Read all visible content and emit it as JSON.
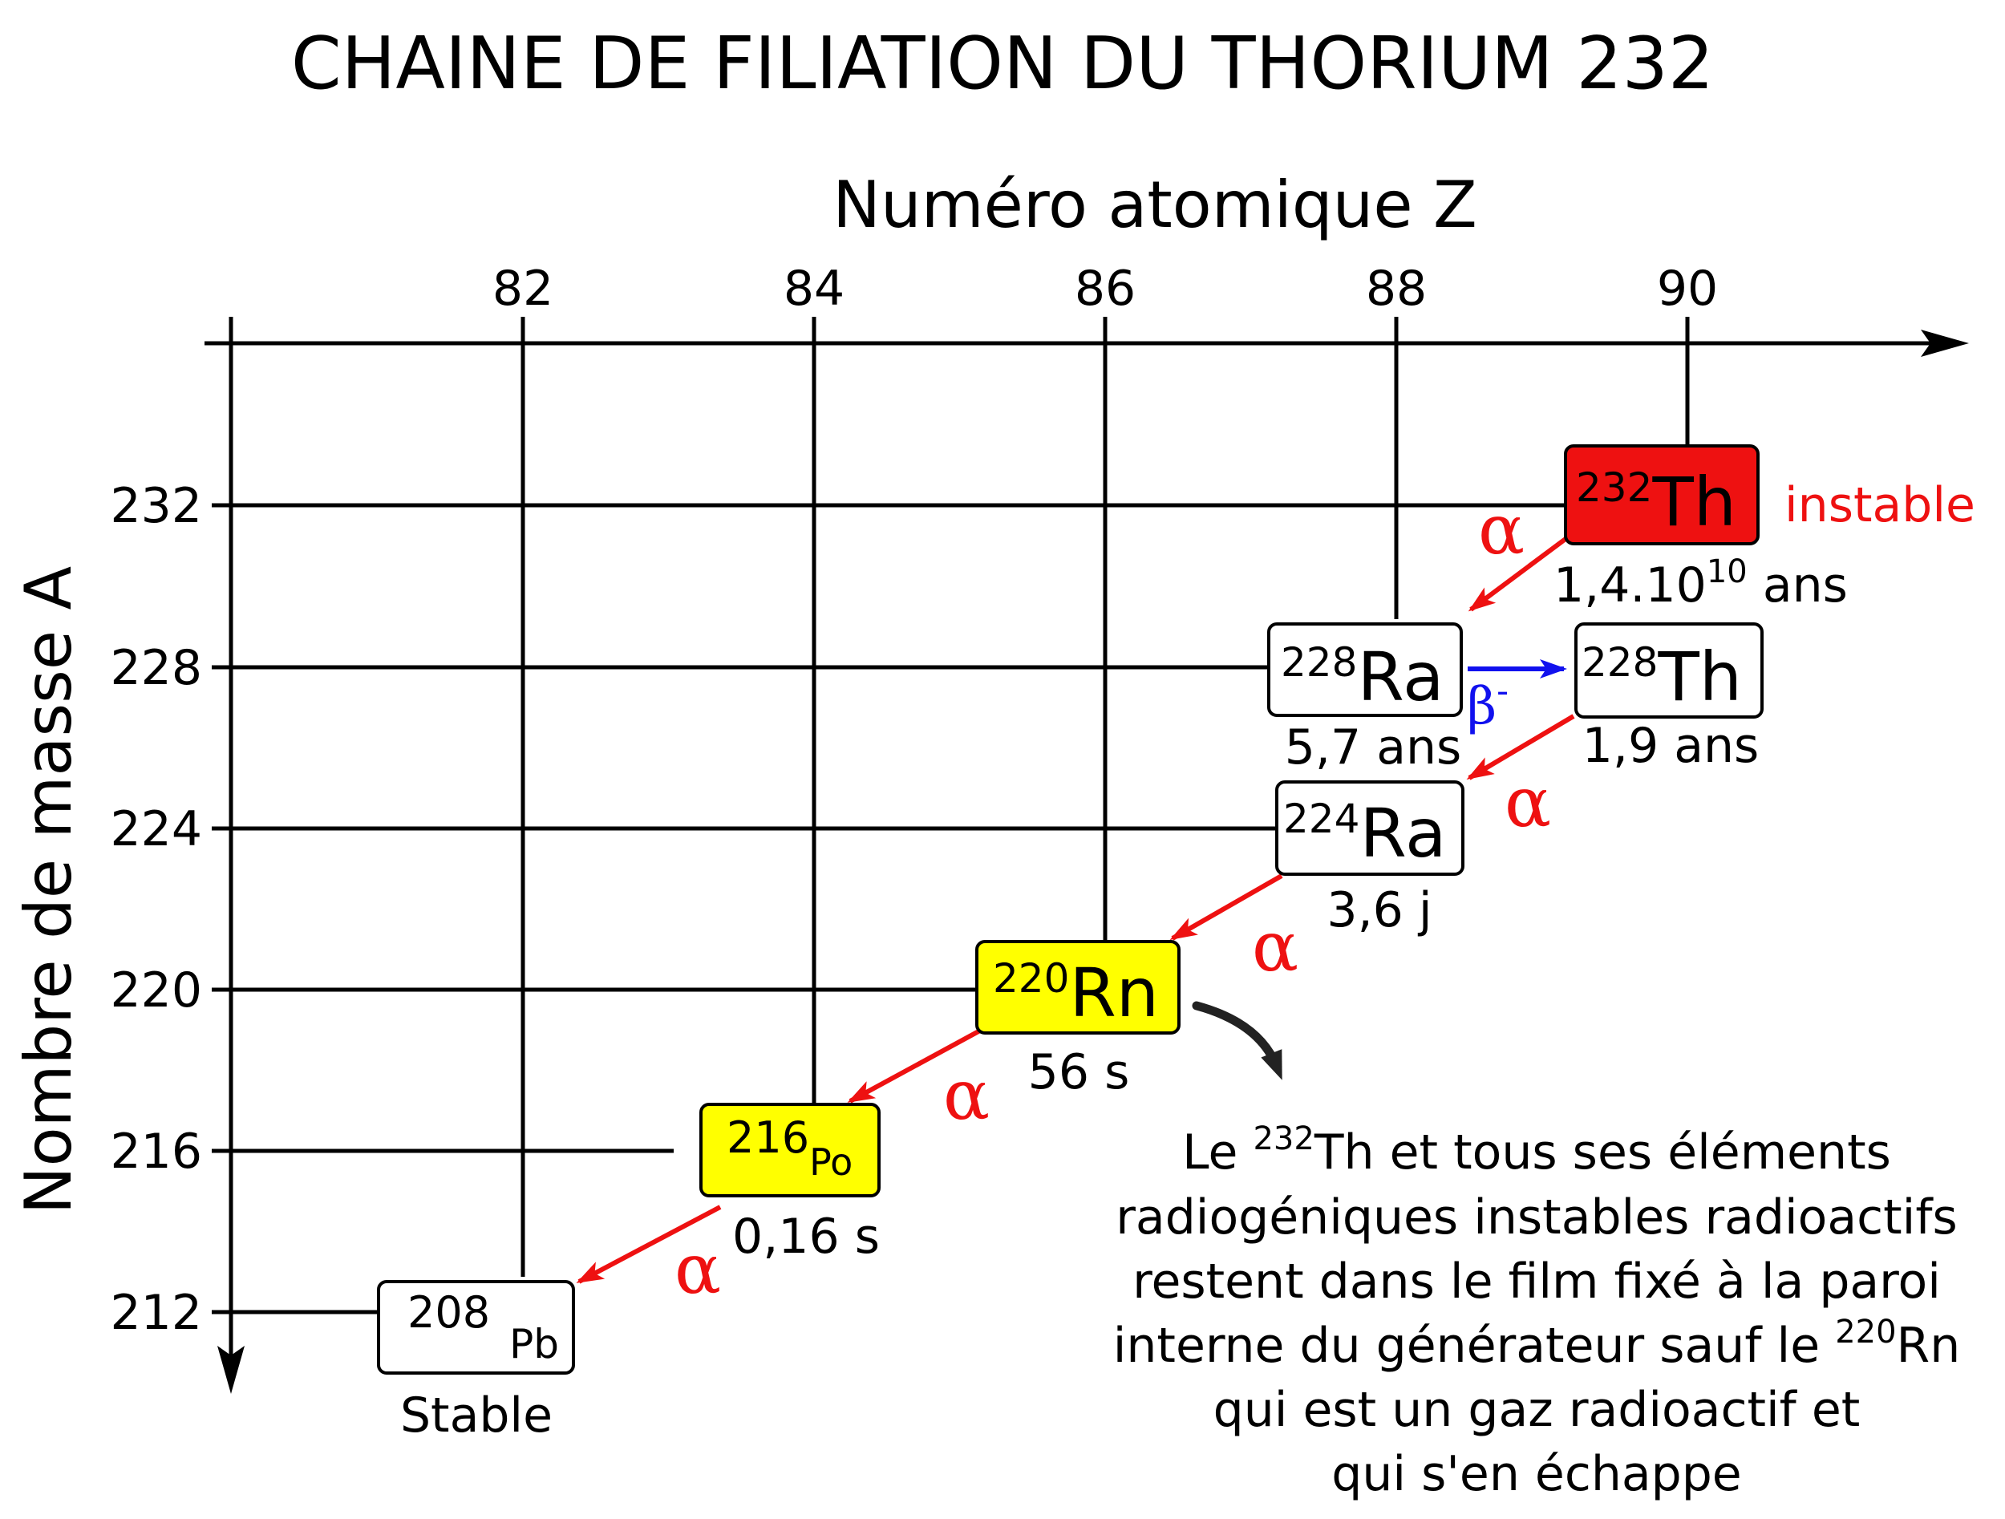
{
  "title": "CHAINE DE FILIATION DU THORIUM 232",
  "x_axis": {
    "label": "Numéro atomique Z",
    "ticks": [
      "82",
      "84",
      "86",
      "88",
      "90"
    ]
  },
  "y_axis": {
    "label": "Nombre de masse A",
    "ticks": [
      "232",
      "228",
      "224",
      "220",
      "216",
      "212"
    ]
  },
  "nuclides": {
    "th232": {
      "mass": "232",
      "symbol": "Th",
      "half_life_base": "1,4.10",
      "half_life_exp": "10",
      "half_life_unit": " ans",
      "note": "instable",
      "fill": "#ee1111"
    },
    "ra228": {
      "mass": "228",
      "symbol": "Ra",
      "half_life": "5,7 ans",
      "fill": "#ffffff"
    },
    "th228": {
      "mass": "228",
      "symbol": "Th",
      "half_life": "1,9 ans",
      "fill": "#ffffff"
    },
    "ra224": {
      "mass": "224",
      "symbol": "Ra",
      "half_life": "3,6 j",
      "fill": "#ffffff"
    },
    "rn220": {
      "mass": "220",
      "symbol": "Rn",
      "half_life": "56 s",
      "fill": "#ffff00"
    },
    "po216": {
      "mass": "216",
      "symbol": "Po",
      "half_life": "0,16 s",
      "fill": "#ffff00"
    },
    "pb208": {
      "mass": "208",
      "symbol": "Pb",
      "half_life": "Stable",
      "fill": "#ffffff"
    }
  },
  "decays": {
    "alpha_symbol": "α",
    "beta_symbol": "β",
    "beta_sign": "-",
    "alpha_color": "#ee1111",
    "beta_color": "#1111ee"
  },
  "note": {
    "l1_pre": "Le ",
    "l1_sup": "232",
    "l1_post": "Th et tous ses éléments",
    "l2": "radiogéniques instables radioactifs",
    "l3": "restent dans le film fixé à la paroi",
    "l4_pre": "interne du générateur sauf le ",
    "l4_sup": "220",
    "l4_post": "Rn",
    "l5": "qui est un gaz radioactif et",
    "l6": "qui s'en échappe"
  },
  "colors": {
    "line": "#000000",
    "arrow_note": "#222222"
  }
}
